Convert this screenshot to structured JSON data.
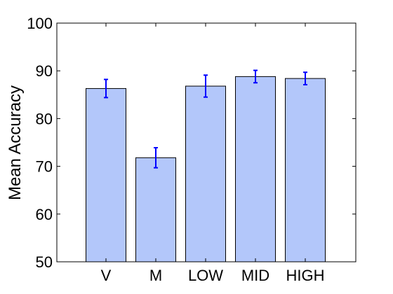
{
  "chart_data": {
    "type": "bar",
    "title": "",
    "xlabel": "",
    "ylabel": "Mean Accuracy",
    "categories": [
      "V",
      "M",
      "LOW",
      "MID",
      "HIGH"
    ],
    "values": [
      86.3,
      71.8,
      86.8,
      88.8,
      88.4
    ],
    "error": [
      1.9,
      2.1,
      2.3,
      1.3,
      1.3
    ],
    "ylim": [
      50,
      100
    ],
    "yticks": [
      50,
      60,
      70,
      80,
      90,
      100
    ],
    "ytick_labels": [
      "50",
      "60",
      "70",
      "80",
      "90",
      "100"
    ],
    "grid": false,
    "legend": "none",
    "bar_color": "#b3c7fa",
    "bar_edge_color": "#000000",
    "error_color": "#0000ff"
  }
}
